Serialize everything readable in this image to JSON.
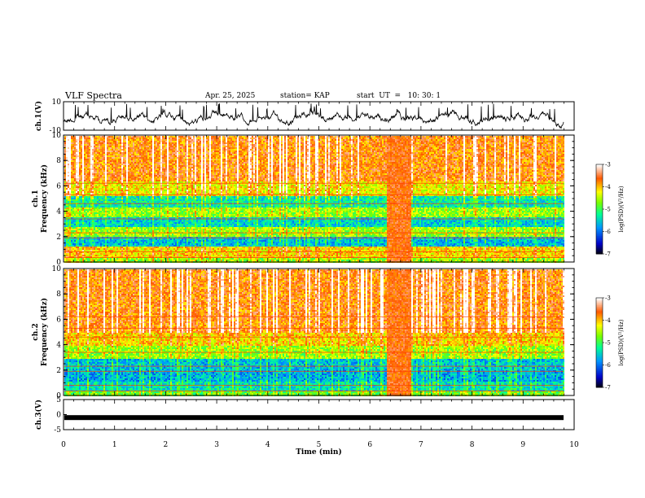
{
  "header": {
    "title": "VLF Spectra",
    "date": "Apr. 25, 2025",
    "station": "station= KAP",
    "start": "start  UT  =   10: 30: 1"
  },
  "chart_data": [
    {
      "type": "line",
      "name": "ch1-waveform",
      "ylabel": "ch.1(V)",
      "ylim": [
        -10,
        10
      ],
      "yticks": [
        10,
        -10
      ],
      "xlim": [
        0,
        10
      ]
    },
    {
      "type": "heatmap",
      "name": "ch1-spectrogram",
      "ylabel_line1": "ch.1",
      "ylabel_line2": "Frequency (kHz)",
      "ylim": [
        0,
        10
      ],
      "yticks": [
        0,
        2,
        4,
        6,
        8,
        10
      ],
      "xlim": [
        0,
        9.85
      ],
      "colorbar": {
        "label": "log(PSD)(V²/Hz)",
        "ticks": [
          -3,
          -4,
          -5,
          -6,
          -7
        ],
        "range": [
          -7,
          -3
        ]
      },
      "bands_log_psd": [
        {
          "f": [
            0,
            0.4
          ],
          "v": -4.6
        },
        {
          "f": [
            0.4,
            1.3
          ],
          "v": -4.1
        },
        {
          "f": [
            1.3,
            2.0
          ],
          "v": -5.6
        },
        {
          "f": [
            2.0,
            2.8
          ],
          "v": -4.6
        },
        {
          "f": [
            2.8,
            3.6
          ],
          "v": -5.5
        },
        {
          "f": [
            3.6,
            4.4
          ],
          "v": -4.6
        },
        {
          "f": [
            4.4,
            5.2
          ],
          "v": -5.3
        },
        {
          "f": [
            5.2,
            6.4
          ],
          "v": -4.2
        },
        {
          "f": [
            6.4,
            10.0
          ],
          "v": -3.7
        }
      ],
      "event_interval_min": [
        6.3,
        6.8
      ]
    },
    {
      "type": "heatmap",
      "name": "ch2-spectrogram",
      "ylabel_line1": "ch.2",
      "ylabel_line2": "Frequency (kHz)",
      "ylim": [
        0,
        10
      ],
      "yticks": [
        0,
        2,
        4,
        6,
        8,
        10
      ],
      "xlim": [
        0,
        9.85
      ],
      "colorbar": {
        "label": "log(PSD)(V²/Hz)",
        "ticks": [
          -3,
          -4,
          -5,
          -6,
          -7
        ],
        "range": [
          -7,
          -3
        ]
      },
      "bands_log_psd": [
        {
          "f": [
            0,
            0.4
          ],
          "v": -4.8
        },
        {
          "f": [
            0.4,
            1.2
          ],
          "v": -5.4
        },
        {
          "f": [
            1.2,
            2.0
          ],
          "v": -5.7
        },
        {
          "f": [
            2.0,
            3.0
          ],
          "v": -5.6
        },
        {
          "f": [
            3.0,
            4.0
          ],
          "v": -4.6
        },
        {
          "f": [
            4.0,
            5.0
          ],
          "v": -4.1
        },
        {
          "f": [
            5.0,
            10.0
          ],
          "v": -3.7
        }
      ],
      "event_interval_min": [
        6.3,
        6.8
      ]
    },
    {
      "type": "line",
      "name": "ch3-waveform",
      "ylabel": "ch.3(V)",
      "ylim": [
        -5,
        5
      ],
      "yticks": [
        5,
        0,
        -5
      ],
      "xlim": [
        0,
        10
      ],
      "level": -1
    }
  ],
  "xaxis": {
    "label": "Time (min)",
    "ticks": [
      0,
      1,
      2,
      3,
      4,
      5,
      6,
      7,
      8,
      9,
      10
    ],
    "range": [
      0,
      10
    ]
  }
}
